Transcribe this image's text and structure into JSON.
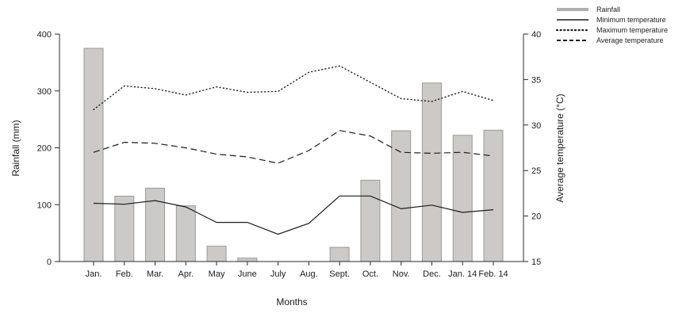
{
  "chart_data": {
    "type": "bar",
    "title": "",
    "xlabel": "Months",
    "ylabel_left": "Rainfall (mm)",
    "ylabel_right": "Average temperature (°C)",
    "categories": [
      "Jan.",
      "Feb.",
      "Mar.",
      "Apr.",
      "May",
      "June",
      "July",
      "Aug.",
      "Sept.",
      "Oct.",
      "Nov.",
      "Dec.",
      "Jan. 14",
      "Feb. 14"
    ],
    "bar_series": {
      "name": "Rainfall",
      "axis": "left",
      "unit": "mm",
      "values": [
        375,
        115,
        129,
        98,
        27,
        6,
        0,
        0,
        25,
        143,
        230,
        314,
        222,
        231
      ]
    },
    "line_series": [
      {
        "name": "Minimum temperature",
        "style": "solid",
        "axis": "right",
        "unit": "°C",
        "values": [
          21.4,
          21.3,
          21.7,
          21.0,
          19.3,
          19.3,
          18.0,
          19.2,
          22.2,
          22.2,
          20.8,
          21.2,
          20.4,
          20.7
        ]
      },
      {
        "name": "Maximum temperature",
        "style": "dotted",
        "axis": "right",
        "unit": "°C",
        "values": [
          31.7,
          34.3,
          34.0,
          33.3,
          34.2,
          33.6,
          33.7,
          35.8,
          36.5,
          34.7,
          32.9,
          32.6,
          33.7,
          32.7
        ]
      },
      {
        "name": "Average temperature",
        "style": "dashed",
        "axis": "right",
        "unit": "°C",
        "values": [
          27.0,
          28.1,
          28.0,
          27.5,
          26.8,
          26.5,
          25.8,
          27.2,
          29.4,
          28.8,
          27.0,
          26.9,
          27.0,
          26.6
        ]
      }
    ],
    "left_axis": {
      "min": 0,
      "max": 400,
      "ticks": [
        0,
        100,
        200,
        300,
        400
      ]
    },
    "right_axis": {
      "min": 15,
      "max": 40,
      "ticks": [
        15,
        20,
        25,
        30,
        35,
        40
      ]
    },
    "grid": false,
    "legend_position": "top-right"
  },
  "colors": {
    "bar_fill": "#cbcac8",
    "bar_stroke": "#9a9996",
    "line": "#1c1c1c",
    "legend_rainfall": "#b1b0ae",
    "axis": "#2b2b2b",
    "background": "#ffffff"
  }
}
